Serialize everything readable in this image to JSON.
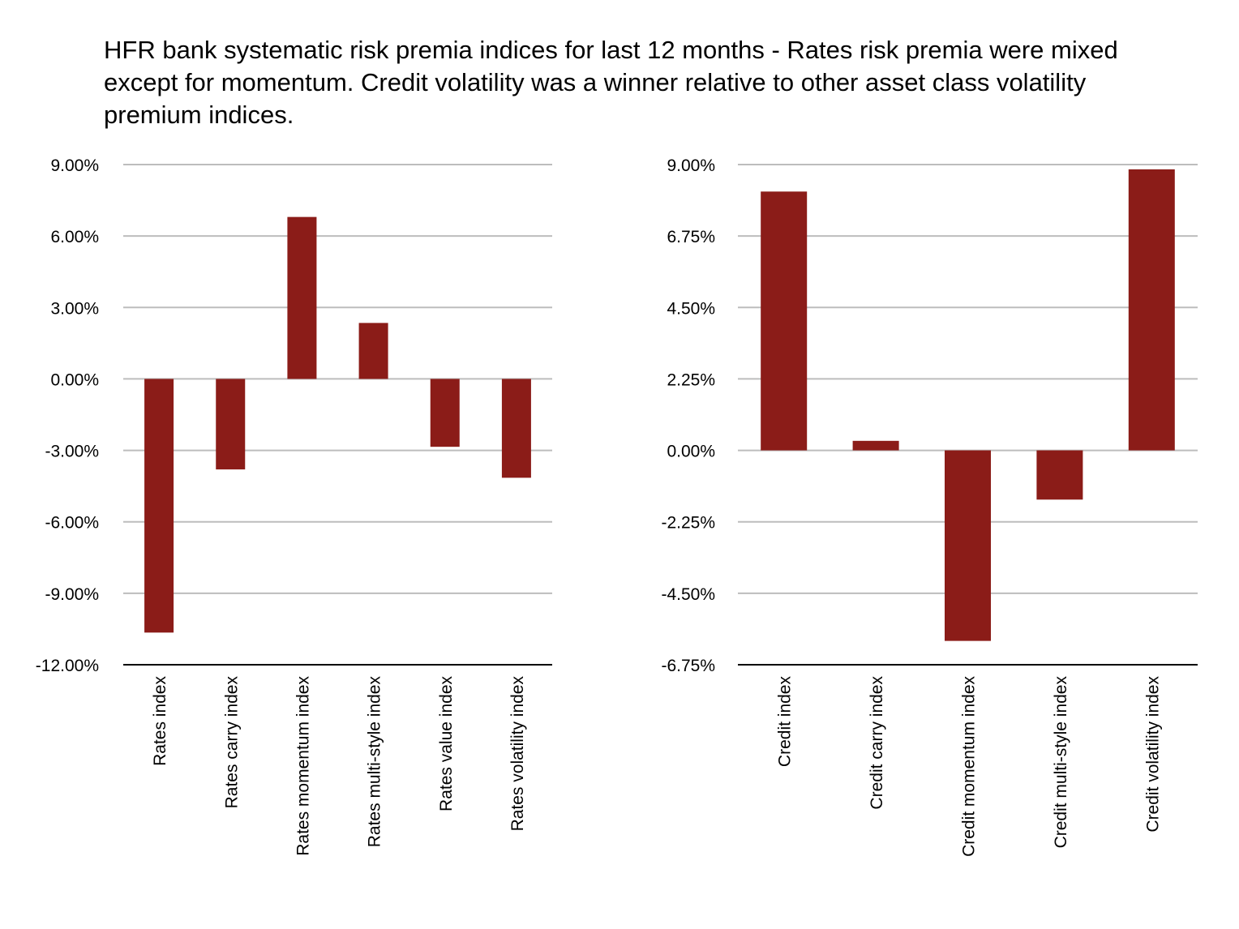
{
  "title": "HFR bank systematic risk premia indices for last 12 months - Rates risk premia were mixed except for momentum. Credit volatility was a winner relative to other asset class volatility premium indices.",
  "colors": {
    "bar": "#8B1C18",
    "grid": "#bdbdbd"
  },
  "chart_data": [
    {
      "type": "bar",
      "categories": [
        "Rates index",
        "Rates carry index",
        "Rates momentum index",
        "Rates multi-style index",
        "Rates value index",
        "Rates volatility index"
      ],
      "values": [
        -10.65,
        -3.8,
        6.8,
        2.35,
        -2.85,
        -4.15
      ],
      "ylim": [
        -12,
        9
      ],
      "yticks": [
        9,
        6,
        3,
        0,
        -3,
        -6,
        -9,
        -12
      ],
      "ytick_labels": [
        "9.00%",
        "6.00%",
        "3.00%",
        "0.00%",
        "-3.00%",
        "-6.00%",
        "-9.00%",
        "-12.00%"
      ],
      "grid": true
    },
    {
      "type": "bar",
      "categories": [
        "Credit index",
        "Credit carry index",
        "Credit momentum index",
        "Credit multi-style index",
        "Credit volatility index"
      ],
      "values": [
        8.15,
        0.3,
        -6.0,
        -1.55,
        8.85
      ],
      "ylim": [
        -6.75,
        9
      ],
      "yticks": [
        9,
        6.75,
        4.5,
        2.25,
        0,
        -2.25,
        -4.5,
        -6.75
      ],
      "ytick_labels": [
        "9.00%",
        "6.75%",
        "4.50%",
        "2.25%",
        "0.00%",
        "-2.25%",
        "-4.50%",
        "-6.75%"
      ],
      "grid": true
    }
  ]
}
